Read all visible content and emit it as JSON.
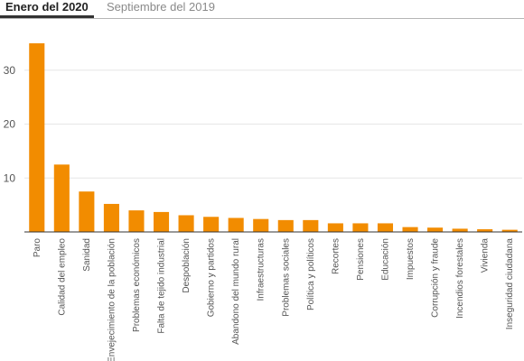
{
  "tabs": [
    {
      "label": "Enero del 2020",
      "active": true
    },
    {
      "label": "Septiembre del 2019",
      "active": false
    }
  ],
  "colors": {
    "bar": "#f28c00",
    "grid": "#e6e6e6",
    "axis": "#333333",
    "tick_text": "#555555"
  },
  "chart_data": {
    "type": "bar",
    "title": "",
    "xlabel": "",
    "ylabel": "",
    "ylim": [
      0,
      37
    ],
    "yticks": [
      10,
      20,
      30
    ],
    "grid": true,
    "categories": [
      "Paro",
      "Calidad del empleo",
      "Sanidad",
      "Envejecimiento de la población",
      "Problemas económicos",
      "Falta de tejido industrial",
      "Despoblación",
      "Gobierno y partidos",
      "Abandono del mundo rural",
      "Infraestructuras",
      "Problemas sociales",
      "Política y políticos",
      "Recortes",
      "Pensiones",
      "Educación",
      "Impuestos",
      "Corrupción y fraude",
      "Incendios forestales",
      "Vivienda",
      "Inseguridad ciudadana"
    ],
    "values": [
      35.0,
      12.5,
      7.5,
      5.2,
      4.0,
      3.7,
      3.1,
      2.8,
      2.6,
      2.4,
      2.2,
      2.2,
      1.6,
      1.6,
      1.6,
      0.9,
      0.8,
      0.6,
      0.5,
      0.4
    ]
  }
}
